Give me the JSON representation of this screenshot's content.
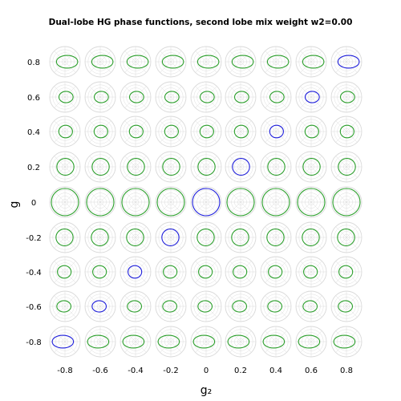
{
  "title": "Dual-lobe HG phase functions, second lobe mix weight w2=0.00",
  "chart_data": {
    "type": "polar-grid",
    "title": "Dual-lobe HG phase functions, second lobe mix weight w2=0.00",
    "xlabel": "g₂",
    "ylabel": "g",
    "x_tick_labels": [
      "-0.8",
      "-0.6",
      "-0.4",
      "-0.2",
      "0",
      "0.2",
      "0.4",
      "0.6",
      "0.8"
    ],
    "y_tick_labels": [
      "0.8",
      "0.6",
      "0.4",
      "0.2",
      "0",
      "-0.2",
      "-0.4",
      "-0.6",
      "-0.8"
    ],
    "g2_values": [
      -0.8,
      -0.6,
      -0.4,
      -0.2,
      0,
      0.2,
      0.4,
      0.6,
      0.8
    ],
    "g_values": [
      0.8,
      0.6,
      0.4,
      0.2,
      0,
      -0.2,
      -0.4,
      -0.6,
      -0.8
    ],
    "w2": 0.0,
    "highlight_rule": "diagonal where g2 equals g",
    "colors": {
      "curve": "#2ca02c",
      "highlight": "#1f1fdc",
      "polar_grid": "#d9d9d9"
    }
  }
}
